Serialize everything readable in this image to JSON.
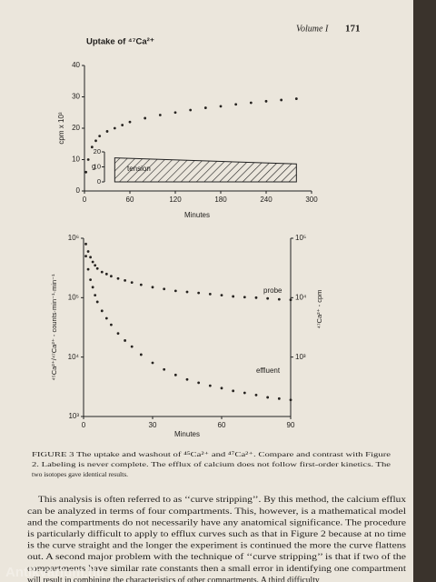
{
  "header": {
    "volume": "Volume I",
    "page": "171"
  },
  "chart_data": [
    {
      "type": "scatter",
      "title": "Uptake of ⁴⁷Ca²⁺",
      "x_label": "Minutes",
      "y_label": "cpm x 10³",
      "x": [
        2,
        5,
        10,
        15,
        20,
        30,
        40,
        50,
        60,
        80,
        100,
        120,
        140,
        160,
        180,
        200,
        220,
        240,
        260,
        280
      ],
      "values": [
        6,
        10,
        14,
        16,
        17.5,
        19,
        20,
        21,
        22,
        23.2,
        24.2,
        25,
        25.8,
        26.5,
        27,
        27.6,
        28.1,
        28.6,
        29,
        29.4
      ],
      "color": "#262320",
      "xlim": [
        0,
        300
      ],
      "xticks": [
        0,
        60,
        120,
        180,
        240,
        300
      ],
      "ylim": [
        0,
        40
      ],
      "yticks": [
        0,
        10,
        20,
        30,
        40
      ],
      "inset": {
        "label": "tension",
        "unit": "g",
        "ylim": [
          0,
          20
        ],
        "yticks": [
          0,
          10,
          20
        ],
        "x": [
          40,
          280
        ],
        "values": [
          16,
          12
        ]
      }
    },
    {
      "type": "scatter",
      "x_label": "Minutes",
      "y_label": "⁴⁵Ca²⁺/⁴⁷Ca²⁺ - counts·min⁻¹·min⁻¹",
      "y2_label": "⁴⁷Ca²⁺ - cpm",
      "log_scale": true,
      "x": [
        1,
        2,
        3,
        4,
        5,
        6,
        8,
        10,
        12,
        15,
        18,
        21,
        25,
        30,
        35,
        40,
        45,
        50,
        55,
        60,
        65,
        70,
        75,
        80,
        85,
        90
      ],
      "series": [
        {
          "name": "probe",
          "axis": "y2",
          "color": "#262320",
          "values": [
            80000,
            60000,
            48000,
            40000,
            35000,
            31000,
            27000,
            25000,
            23000,
            21000,
            19500,
            18000,
            16500,
            15000,
            14000,
            13000,
            12500,
            12000,
            11500,
            11000,
            10500,
            10200,
            10000,
            9700,
            9400,
            9200
          ]
        },
        {
          "name": "effluent",
          "color": "#262320",
          "values": [
            500000,
            300000,
            200000,
            150000,
            110000,
            85000,
            60000,
            45000,
            35000,
            25000,
            19000,
            15000,
            11000,
            8000,
            6200,
            5000,
            4200,
            3700,
            3300,
            3000,
            2700,
            2500,
            2300,
            2100,
            2000,
            1900
          ]
        }
      ],
      "xlim": [
        0,
        90
      ],
      "xticks": [
        0,
        30,
        60,
        90
      ],
      "ylim": [
        1000,
        1000000
      ],
      "yticks": [
        {
          "value": 1000,
          "label": "10³"
        },
        {
          "value": 10000,
          "label": "10⁴"
        },
        {
          "value": 100000,
          "label": "10⁵"
        },
        {
          "value": 1000000,
          "label": "10⁶"
        }
      ],
      "y2lim": [
        100,
        100000
      ],
      "y2ticks": [
        {
          "value": 1000,
          "label": "10³"
        },
        {
          "value": 10000,
          "label": "10⁴"
        },
        {
          "value": 100000,
          "label": "10⁵"
        }
      ]
    }
  ],
  "caption": [
    "FIGURE 3   The uptake and washout of ⁴⁵Ca²⁺ and ⁴⁷Ca²⁺. Compare and contrast with Figure",
    "2. Labeling is never complete. The efflux of calcium does not follow first-order kinetics. The",
    "two isotopes gave identical results."
  ],
  "body": [
    "This analysis is often referred to as ‘‘curve stripping’’. By this method, the calcium efflux",
    "can be analyzed in terms of four compartments. This, however, is a mathematical model",
    "and the compartments do not necessarily have any anatomical significance. The procedure",
    "is particularly difficult to apply to efflux curves such as that in Figure 2 because at no time",
    "is the curve straight and the longer the experiment is continued the more the curve flattens",
    "out. A second major problem with the technique of ‘‘curve stripping’’ is that if two of the",
    "compartments have similar rate constants then a small error in identifying one compartment",
    "will result in combining the characteristics of other compartments. A third difficulty"
  ],
  "watermark": "Antikvarium.hu"
}
